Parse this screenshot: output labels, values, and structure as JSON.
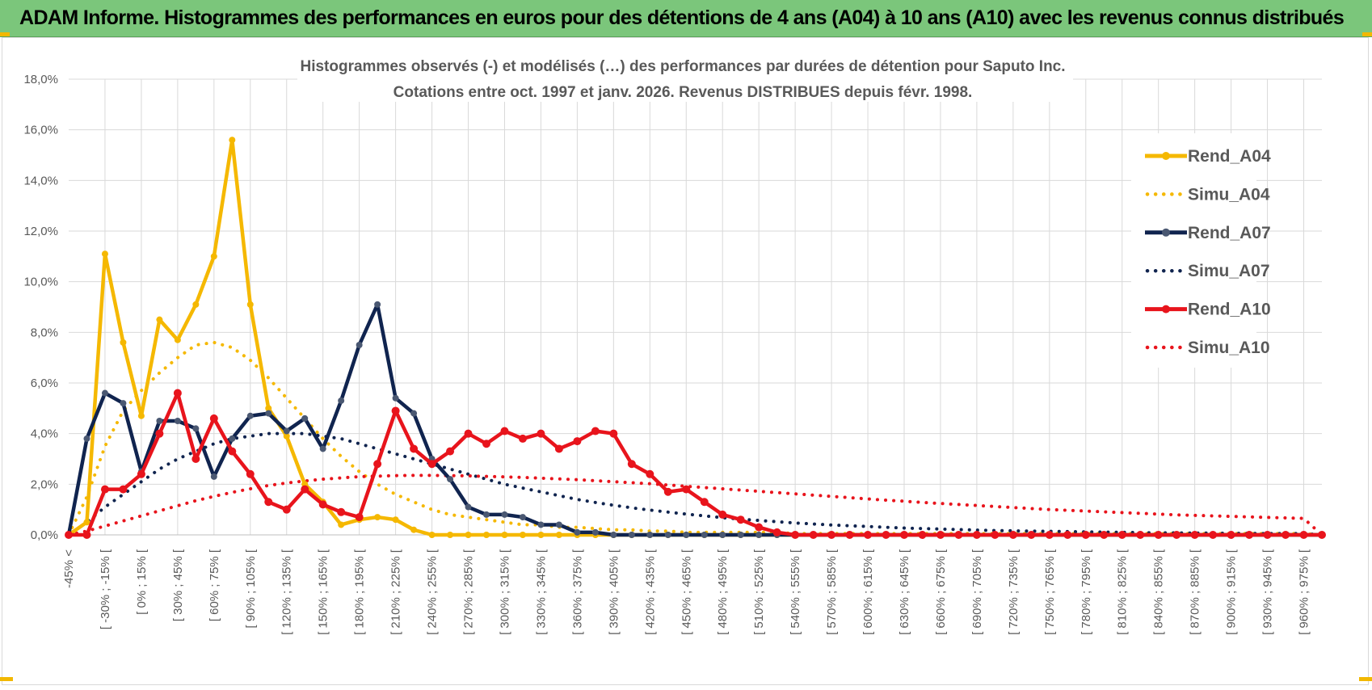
{
  "header": {
    "title": "ADAM Informe. Histogrammes des performances en euros pour des détentions de 4 ans (A04) à 10 ans (A10) avec les revenus connus distribués"
  },
  "colors": {
    "banner": "#7bc67b",
    "A04": "#f5b800",
    "A07": "#10244f",
    "A10": "#e8141c",
    "grid": "#d9d9d9"
  },
  "chart_data": {
    "type": "line",
    "title_line1": "Histogrammes observés (-) et modélisés (…) des performances par durées de détention pour Saputo Inc.",
    "title_line2": "Cotations entre oct. 1997 et janv. 2026.  Revenus DISTRIBUES depuis févr. 1998.",
    "ylim": [
      0,
      18
    ],
    "y_ticks": [
      "0,0%",
      "2,0%",
      "4,0%",
      "6,0%",
      "8,0%",
      "10,0%",
      "12,0%",
      "14,0%",
      "16,0%",
      "18,0%"
    ],
    "x_labels": [
      "-45% <",
      "[ -30% ; -15% [",
      "[ 0% ; 15% [",
      "[ 30% ; 45% [",
      "[ 60% ; 75% [",
      "[ 90% ; 105% [",
      "[ 120% ; 135% [",
      "[ 150% ; 165% [",
      "[ 180% ; 195% [",
      "[ 210% ; 225% [",
      "[ 240% ; 255% [",
      "[ 270% ; 285% [",
      "[ 300% ; 315% [",
      "[ 330% ; 345% [",
      "[ 360% ; 375% [",
      "[ 390% ; 405% [",
      "[ 420% ; 435% [",
      "[ 450% ; 465% [",
      "[ 480% ; 495% [",
      "[ 510% ; 525% [",
      "[ 540% ; 555% [",
      "[ 570% ; 585% [",
      "[ 600% ; 615% [",
      "[ 630% ; 645% [",
      "[ 660% ; 675% [",
      "[ 690% ; 705% [",
      "[ 720% ; 735% [",
      "[ 750% ; 765% [",
      "[ 780% ; 795% [",
      "[ 810% ; 825% [",
      "[ 840% ; 855% [",
      "[ 870% ; 885% [",
      "[ 900% ; 915% [",
      "[ 930% ; 945% [",
      "[ 960% ; 975% ["
    ],
    "n_points": 70,
    "series": [
      {
        "name": "Rend_A04",
        "style": "solid",
        "color": "#f5b800",
        "values": [
          0.0,
          0.5,
          11.1,
          7.6,
          4.7,
          8.5,
          7.7,
          9.1,
          11.0,
          15.6,
          9.1,
          5.0,
          3.9,
          2.0,
          1.3,
          0.4,
          0.6,
          0.7,
          0.6,
          0.2,
          0.0,
          0.0,
          0.0,
          0.0,
          0.0,
          0.0,
          0.0,
          0.0,
          0.0,
          0.0,
          0.0,
          0.0,
          0.0,
          0.0,
          0.0,
          0.0,
          0.0,
          0.0,
          0.0,
          0.0,
          0.0,
          0.0,
          0.0,
          0.0,
          0.0,
          0.0,
          0.0,
          0.0,
          0.0,
          0.0,
          0.0,
          0.0,
          0.0,
          0.0,
          0.0,
          0.0,
          0.0,
          0.0,
          0.0,
          0.0,
          0.0,
          0.0,
          0.0,
          0.0,
          0.0,
          0.0,
          0.0,
          0.0,
          0.0,
          0.0
        ]
      },
      {
        "name": "Simu_A04",
        "style": "dotted",
        "color": "#f5b800",
        "values": [
          0.0,
          1.5,
          3.5,
          4.9,
          5.7,
          6.4,
          7.0,
          7.5,
          7.6,
          7.4,
          6.9,
          6.2,
          5.4,
          4.6,
          3.8,
          3.1,
          2.5,
          2.0,
          1.6,
          1.3,
          1.0,
          0.8,
          0.7,
          0.6,
          0.5,
          0.4,
          0.4,
          0.3,
          0.3,
          0.25,
          0.2,
          0.2,
          0.15,
          0.15,
          0.1,
          0.1,
          0.1,
          0.1,
          0.1,
          0.1,
          0.05,
          0.05,
          0.05,
          0.05,
          0.05,
          0.05,
          0.05,
          0.05,
          0.05,
          0.05,
          0.05,
          0.05,
          0.05,
          0.05,
          0.05,
          0.05,
          0.05,
          0.05,
          0.05,
          0.05,
          0.05,
          0.05,
          0.05,
          0.05,
          0.05,
          0.05,
          0.05,
          0.05,
          0.05,
          0.0
        ]
      },
      {
        "name": "Rend_A07",
        "style": "solid",
        "color": "#10244f",
        "values": [
          0.0,
          3.8,
          5.6,
          5.2,
          2.5,
          4.5,
          4.5,
          4.2,
          2.3,
          3.8,
          4.7,
          4.8,
          4.1,
          4.6,
          3.4,
          5.3,
          7.5,
          9.1,
          5.4,
          4.8,
          3.0,
          2.2,
          1.1,
          0.8,
          0.8,
          0.7,
          0.4,
          0.4,
          0.1,
          0.1,
          0.0,
          0.0,
          0.0,
          0.0,
          0.0,
          0.0,
          0.0,
          0.0,
          0.0,
          0.0,
          0.0,
          0.0,
          0.0,
          0.0,
          0.0,
          0.0,
          0.0,
          0.0,
          0.0,
          0.0,
          0.0,
          0.0,
          0.0,
          0.0,
          0.0,
          0.0,
          0.0,
          0.0,
          0.0,
          0.0,
          0.0,
          0.0,
          0.0,
          0.0,
          0.0,
          0.0,
          0.0,
          0.0,
          0.0,
          0.0
        ]
      },
      {
        "name": "Simu_A07",
        "style": "dotted",
        "color": "#10244f",
        "values": [
          0.0,
          0.5,
          1.1,
          1.6,
          2.1,
          2.6,
          3.0,
          3.3,
          3.6,
          3.8,
          3.9,
          4.0,
          4.0,
          4.0,
          3.9,
          3.8,
          3.6,
          3.4,
          3.2,
          3.0,
          2.8,
          2.6,
          2.4,
          2.2,
          2.0,
          1.85,
          1.7,
          1.55,
          1.4,
          1.28,
          1.17,
          1.07,
          0.98,
          0.9,
          0.82,
          0.75,
          0.68,
          0.62,
          0.57,
          0.52,
          0.47,
          0.43,
          0.39,
          0.36,
          0.33,
          0.3,
          0.27,
          0.25,
          0.23,
          0.21,
          0.19,
          0.17,
          0.16,
          0.15,
          0.14,
          0.13,
          0.12,
          0.11,
          0.1,
          0.09,
          0.08,
          0.08,
          0.07,
          0.07,
          0.06,
          0.06,
          0.05,
          0.05,
          0.05,
          0.0
        ]
      },
      {
        "name": "Rend_A10",
        "style": "solid",
        "color": "#e8141c",
        "values": [
          0.0,
          0.0,
          1.8,
          1.8,
          2.4,
          4.0,
          5.6,
          3.0,
          4.6,
          3.3,
          2.4,
          1.3,
          1.0,
          1.8,
          1.2,
          0.9,
          0.7,
          2.8,
          4.9,
          3.4,
          2.8,
          3.3,
          4.0,
          3.6,
          4.1,
          3.8,
          4.0,
          3.4,
          3.7,
          4.1,
          4.0,
          2.8,
          2.4,
          1.7,
          1.8,
          1.3,
          0.8,
          0.6,
          0.3,
          0.1,
          0.0,
          0.0,
          0.0,
          0.0,
          0.0,
          0.0,
          0.0,
          0.0,
          0.0,
          0.0,
          0.0,
          0.0,
          0.0,
          0.0,
          0.0,
          0.0,
          0.0,
          0.0,
          0.0,
          0.0,
          0.0,
          0.0,
          0.0,
          0.0,
          0.0,
          0.0,
          0.0,
          0.0,
          0.0,
          0.0
        ]
      },
      {
        "name": "Simu_A10",
        "style": "dotted",
        "color": "#e8141c",
        "values": [
          0.0,
          0.15,
          0.35,
          0.55,
          0.75,
          0.95,
          1.15,
          1.35,
          1.52,
          1.68,
          1.82,
          1.95,
          2.05,
          2.13,
          2.2,
          2.25,
          2.3,
          2.32,
          2.34,
          2.35,
          2.35,
          2.34,
          2.33,
          2.31,
          2.29,
          2.27,
          2.24,
          2.21,
          2.18,
          2.14,
          2.1,
          2.06,
          2.02,
          1.97,
          1.92,
          1.87,
          1.82,
          1.77,
          1.72,
          1.67,
          1.62,
          1.57,
          1.52,
          1.47,
          1.42,
          1.37,
          1.33,
          1.28,
          1.24,
          1.2,
          1.16,
          1.12,
          1.08,
          1.04,
          1.0,
          0.97,
          0.94,
          0.91,
          0.88,
          0.85,
          0.82,
          0.79,
          0.77,
          0.75,
          0.73,
          0.71,
          0.69,
          0.67,
          0.65,
          0.0
        ]
      }
    ],
    "legend": [
      "Rend_A04",
      "Simu_A04",
      "Rend_A07",
      "Simu_A07",
      "Rend_A10",
      "Simu_A10"
    ],
    "legend_position": "top-right"
  }
}
